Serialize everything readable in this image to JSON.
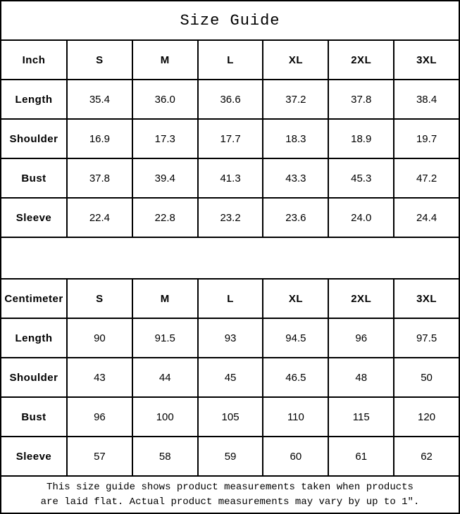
{
  "title": "Size Guide",
  "tables": [
    {
      "unit_label": "Inch",
      "sizes": [
        "S",
        "M",
        "L",
        "XL",
        "2XL",
        "3XL"
      ],
      "rows": [
        {
          "label": "Length",
          "values": [
            "35.4",
            "36.0",
            "36.6",
            "37.2",
            "37.8",
            "38.4"
          ]
        },
        {
          "label": "Shoulder",
          "values": [
            "16.9",
            "17.3",
            "17.7",
            "18.3",
            "18.9",
            "19.7"
          ]
        },
        {
          "label": "Bust",
          "values": [
            "37.8",
            "39.4",
            "41.3",
            "43.3",
            "45.3",
            "47.2"
          ]
        },
        {
          "label": "Sleeve",
          "values": [
            "22.4",
            "22.8",
            "23.2",
            "23.6",
            "24.0",
            "24.4"
          ]
        }
      ]
    },
    {
      "unit_label": "Centimeter",
      "sizes": [
        "S",
        "M",
        "L",
        "XL",
        "2XL",
        "3XL"
      ],
      "rows": [
        {
          "label": "Length",
          "values": [
            "90",
            "91.5",
            "93",
            "94.5",
            "96",
            "97.5"
          ]
        },
        {
          "label": "Shoulder",
          "values": [
            "43",
            "44",
            "45",
            "46.5",
            "48",
            "50"
          ]
        },
        {
          "label": "Bust",
          "values": [
            "96",
            "100",
            "105",
            "110",
            "115",
            "120"
          ]
        },
        {
          "label": "Sleeve",
          "values": [
            "57",
            "58",
            "59",
            "60",
            "61",
            "62"
          ]
        }
      ]
    }
  ],
  "footer": {
    "line1": "This size guide shows product measurements taken when products",
    "line2": "are laid flat. Actual product measurements may vary by up to 1″."
  },
  "colors": {
    "border": "#000000",
    "background": "#ffffff",
    "text": "#000000"
  }
}
